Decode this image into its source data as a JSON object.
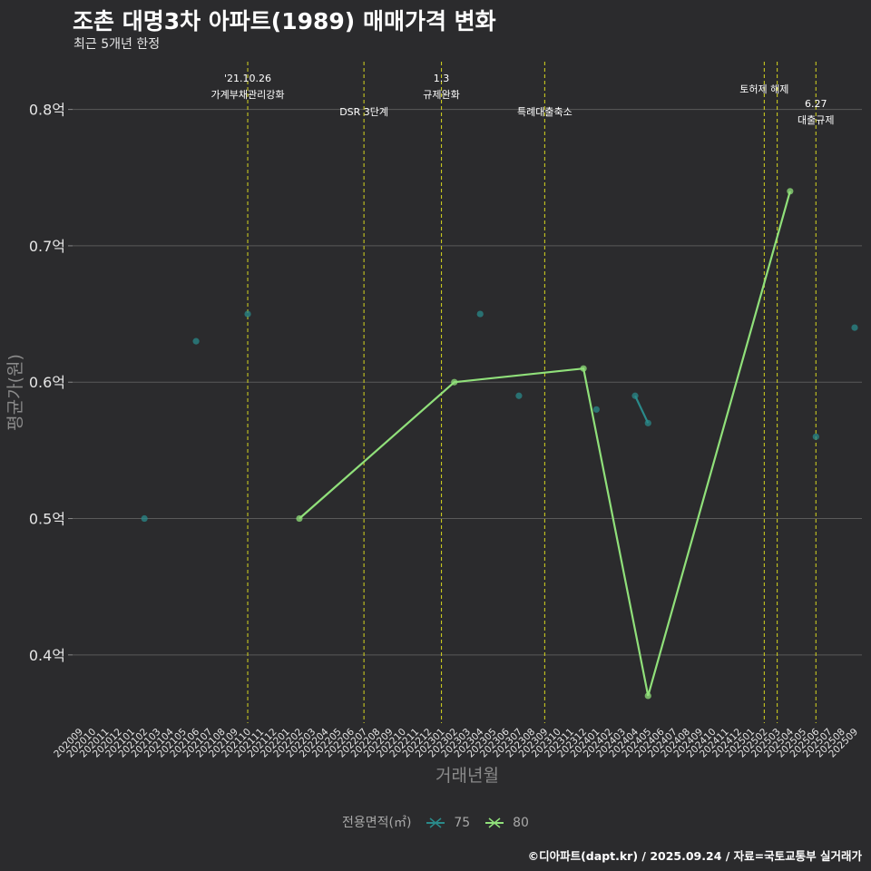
{
  "header": {
    "title": "조촌 대명3차 아파트(1989) 매매가격 변화",
    "subtitle": "최근 5개년 한정"
  },
  "footer": {
    "credit": "©디아파트(dapt.kr) / 2025.09.24 / 자료=국토교통부 실거래가"
  },
  "legend": {
    "title": "전용면적(㎡)",
    "items": [
      {
        "label": "75",
        "color": "#2a8a8a"
      },
      {
        "label": "80",
        "color": "#90e07a"
      }
    ]
  },
  "colors": {
    "background": "#2b2b2d",
    "grid": "#5a5a5a",
    "event_line": "#c8c820",
    "series_75": "#2a8a8a",
    "series_80": "#90e07a"
  },
  "chart_data": {
    "type": "line",
    "title": "조촌 대명3차 아파트(1989) 매매가격 변화",
    "xlabel": "거래년월",
    "ylabel": "평균가(원)",
    "ylim": [
      0.35,
      0.835
    ],
    "yticks": [
      {
        "value": 0.4,
        "label": "0.4억"
      },
      {
        "value": 0.5,
        "label": "0.5억"
      },
      {
        "value": 0.6,
        "label": "0.6억"
      },
      {
        "value": 0.7,
        "label": "0.7억"
      },
      {
        "value": 0.8,
        "label": "0.8억"
      }
    ],
    "categories": [
      "202009",
      "202010",
      "202011",
      "202012",
      "202101",
      "202102",
      "202103",
      "202104",
      "202105",
      "202106",
      "202107",
      "202108",
      "202109",
      "202110",
      "202111",
      "202112",
      "202201",
      "202202",
      "202203",
      "202204",
      "202205",
      "202206",
      "202207",
      "202208",
      "202209",
      "202210",
      "202211",
      "202212",
      "202301",
      "202302",
      "202303",
      "202304",
      "202305",
      "202306",
      "202307",
      "202308",
      "202309",
      "202310",
      "202311",
      "202312",
      "202401",
      "202402",
      "202403",
      "202404",
      "202405",
      "202406",
      "202407",
      "202408",
      "202409",
      "202410",
      "202411",
      "202412",
      "202501",
      "202502",
      "202503",
      "202504",
      "202505",
      "202506",
      "202507",
      "202508",
      "202509"
    ],
    "series": [
      {
        "name": "75",
        "color": "#2a8a8a",
        "points": [
          {
            "x": "202102",
            "y": 0.5
          },
          {
            "x": "202106",
            "y": 0.63
          },
          {
            "x": "202110",
            "y": 0.65
          },
          {
            "x": "202304",
            "y": 0.65
          },
          {
            "x": "202307",
            "y": 0.59
          },
          {
            "x": "202401",
            "y": 0.58
          },
          {
            "x": "202404",
            "y": 0.59
          },
          {
            "x": "202405",
            "y": 0.57
          },
          {
            "x": "202506",
            "y": 0.56
          },
          {
            "x": "202509",
            "y": 0.64
          }
        ],
        "segments": [
          [
            "202404",
            "202405"
          ]
        ]
      },
      {
        "name": "80",
        "color": "#90e07a",
        "points": [
          {
            "x": "202202",
            "y": 0.5
          },
          {
            "x": "202302",
            "y": 0.6
          },
          {
            "x": "202312",
            "y": 0.61
          },
          {
            "x": "202405",
            "y": 0.37
          },
          {
            "x": "202504",
            "y": 0.74
          }
        ]
      }
    ],
    "events": [
      {
        "x": "202110",
        "label": "'21.10.26\n가계부채관리강화",
        "level": 1
      },
      {
        "x": "202207",
        "label": "DSR 3단계",
        "level": 2
      },
      {
        "x": "202301",
        "label": "1.3\n규제완화",
        "level": 1
      },
      {
        "x": "202309",
        "label": "특례대출축소",
        "level": 2
      },
      {
        "x": "202502",
        "label": "토허제 해제",
        "level": 1
      },
      {
        "x": "202503",
        "label": "",
        "level": 1
      },
      {
        "x": "202506",
        "label": "6.27\n대출규제",
        "level": 3
      }
    ]
  }
}
